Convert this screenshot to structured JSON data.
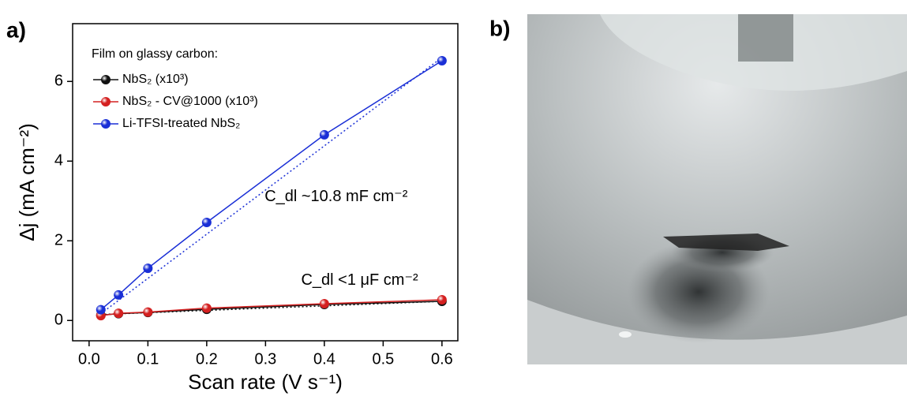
{
  "chart_data": {
    "type": "line",
    "panel_label": "a)",
    "xlabel": "Scan rate (V s⁻¹)",
    "ylabel": "Δj (mA cm⁻²)",
    "legend_title": "Film on glassy carbon:",
    "x": [
      0.02,
      0.05,
      0.1,
      0.2,
      0.4,
      0.6
    ],
    "series": [
      {
        "name": "NbS₂ (x10³)",
        "color": "#111111",
        "values": [
          0.13,
          0.17,
          0.2,
          0.28,
          0.4,
          0.48
        ]
      },
      {
        "name": "NbS₂ - CV@1000 (x10³)",
        "color": "#d42020",
        "values": [
          0.12,
          0.18,
          0.21,
          0.31,
          0.42,
          0.52
        ]
      },
      {
        "name": "Li-TFSI-treated NbS₂",
        "color": "#1a2fd6",
        "values": [
          0.27,
          0.64,
          1.31,
          2.46,
          4.66,
          6.52
        ]
      }
    ],
    "fit_lines": [
      {
        "color": "#1a2fd6",
        "x": [
          0.02,
          0.6
        ],
        "values": [
          0.17,
          6.6
        ]
      },
      {
        "color": "#111111",
        "x": [
          0.02,
          0.6
        ],
        "values": [
          0.15,
          0.48
        ]
      }
    ],
    "annotations": [
      {
        "text": "C_dl ~10.8 mF cm⁻²",
        "color": "#1a2fd6",
        "x": 0.42,
        "y": 3.1
      },
      {
        "text": "C_dl <1 μF cm⁻²",
        "color": "#111111",
        "x": 0.46,
        "y": 1.0
      }
    ],
    "xlim": [
      -0.028,
      0.627
    ],
    "ylim": [
      -0.51,
      7.45
    ],
    "xticks": [
      {
        "value": 0,
        "label": "0.0"
      },
      0.1,
      0.2,
      0.3,
      0.4,
      0.5,
      0.6
    ],
    "yticks": [
      0,
      2,
      4,
      6
    ]
  },
  "photo": {
    "panel_label": "b)"
  }
}
